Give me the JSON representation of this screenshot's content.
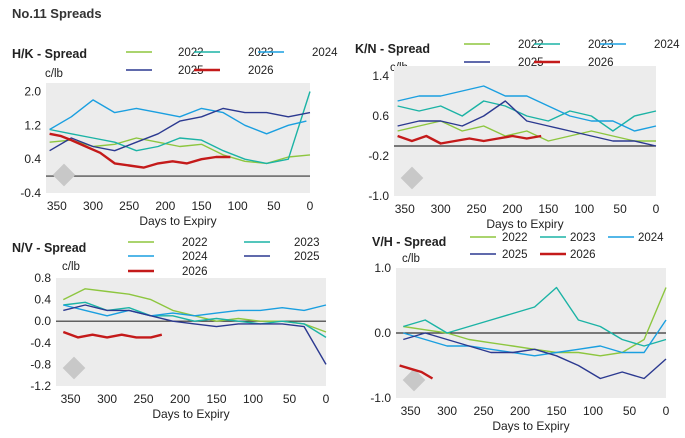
{
  "page": {
    "title": "No.11 Spreads"
  },
  "colors": {
    "2022": "#8dc63f",
    "2023": "#1bb3a5",
    "2024": "#1a9fe0",
    "2025": "#2b3990",
    "2026": "#c41a1a",
    "plot_bg": "#ececec",
    "zero_line": "#333333",
    "text": "#222222"
  },
  "chart_data": [
    {
      "id": "hk",
      "type": "line",
      "title": "H/K - Spread",
      "unit": "c/lb",
      "xlabel": "Days to Expiry",
      "xlim": [
        365,
        0
      ],
      "ylim": [
        -0.4,
        2.2
      ],
      "yticks": [
        "2.0",
        "1.2",
        "0.4",
        "-0.4"
      ],
      "ytick_values": [
        2.0,
        1.2,
        0.4,
        -0.4
      ],
      "xticks": [
        "350",
        "300",
        "250",
        "200",
        "150",
        "100",
        "50",
        "0"
      ],
      "xtick_values": [
        350,
        300,
        250,
        200,
        150,
        100,
        50,
        0
      ],
      "series": [
        {
          "name": "2022",
          "x": [
            360,
            330,
            300,
            270,
            240,
            210,
            180,
            150,
            120,
            90,
            60,
            30,
            0
          ],
          "y": [
            0.8,
            0.85,
            0.7,
            0.75,
            0.9,
            0.8,
            0.7,
            0.75,
            0.5,
            0.35,
            0.3,
            0.45,
            0.5
          ]
        },
        {
          "name": "2023",
          "x": [
            360,
            330,
            300,
            270,
            240,
            210,
            180,
            150,
            120,
            90,
            60,
            30,
            0
          ],
          "y": [
            1.1,
            1.0,
            0.9,
            0.8,
            0.6,
            0.7,
            0.9,
            0.85,
            0.6,
            0.4,
            0.3,
            0.4,
            2.0
          ]
        },
        {
          "name": "2024",
          "x": [
            360,
            330,
            300,
            270,
            240,
            210,
            180,
            150,
            120,
            90,
            60,
            30,
            5
          ],
          "y": [
            1.1,
            1.4,
            1.8,
            1.5,
            1.6,
            1.5,
            1.4,
            1.6,
            1.5,
            1.2,
            1.0,
            1.2,
            1.3
          ]
        },
        {
          "name": "2025",
          "x": [
            360,
            330,
            300,
            270,
            240,
            210,
            180,
            150,
            120,
            90,
            60,
            30,
            0
          ],
          "y": [
            0.6,
            0.9,
            0.7,
            0.6,
            0.8,
            1.0,
            1.3,
            1.4,
            1.6,
            1.5,
            1.5,
            1.4,
            1.5
          ]
        },
        {
          "name": "2026",
          "x": [
            360,
            345,
            330,
            310,
            290,
            270,
            250,
            230,
            210,
            190,
            170,
            150,
            130,
            110
          ],
          "y": [
            1.0,
            0.95,
            0.85,
            0.7,
            0.55,
            0.3,
            0.25,
            0.2,
            0.3,
            0.35,
            0.3,
            0.4,
            0.45,
            0.45
          ]
        }
      ]
    },
    {
      "id": "kn",
      "type": "line",
      "title": "K/N - Spread",
      "unit": "c/lb",
      "xlabel": "Days to Expiry",
      "xlim": [
        365,
        0
      ],
      "ylim": [
        -1.0,
        1.6
      ],
      "yticks": [
        "1.4",
        "0.6",
        "-0.2",
        "-1.0"
      ],
      "ytick_values": [
        1.4,
        0.6,
        -0.2,
        -1.0
      ],
      "xticks": [
        "350",
        "300",
        "250",
        "200",
        "150",
        "100",
        "50",
        "0"
      ],
      "xtick_values": [
        350,
        300,
        250,
        200,
        150,
        100,
        50,
        0
      ],
      "series": [
        {
          "name": "2022",
          "x": [
            360,
            330,
            300,
            270,
            240,
            210,
            180,
            150,
            120,
            90,
            60,
            30,
            0
          ],
          "y": [
            0.3,
            0.4,
            0.5,
            0.3,
            0.4,
            0.2,
            0.3,
            0.1,
            0.2,
            0.3,
            0.2,
            0.1,
            0.1
          ]
        },
        {
          "name": "2023",
          "x": [
            360,
            330,
            300,
            270,
            240,
            210,
            180,
            150,
            120,
            90,
            60,
            30,
            0
          ],
          "y": [
            0.8,
            0.7,
            0.8,
            0.6,
            0.9,
            0.8,
            0.6,
            0.5,
            0.7,
            0.6,
            0.3,
            0.6,
            0.7
          ]
        },
        {
          "name": "2024",
          "x": [
            360,
            330,
            300,
            270,
            240,
            210,
            180,
            150,
            120,
            90,
            60,
            30,
            0
          ],
          "y": [
            0.9,
            1.0,
            1.0,
            1.1,
            1.2,
            1.0,
            1.0,
            0.8,
            0.6,
            0.5,
            0.5,
            0.3,
            0.4
          ]
        },
        {
          "name": "2025",
          "x": [
            360,
            330,
            300,
            270,
            240,
            210,
            180,
            150,
            120,
            90,
            60,
            30,
            0
          ],
          "y": [
            0.4,
            0.5,
            0.5,
            0.4,
            0.6,
            0.9,
            0.5,
            0.4,
            0.3,
            0.2,
            0.1,
            0.1,
            0.0
          ]
        },
        {
          "name": "2026",
          "x": [
            360,
            340,
            320,
            300,
            280,
            260,
            240,
            220,
            200,
            180,
            160
          ],
          "y": [
            0.2,
            0.1,
            0.2,
            0.05,
            0.1,
            0.15,
            0.1,
            0.15,
            0.2,
            0.15,
            0.2
          ]
        }
      ]
    },
    {
      "id": "nv",
      "type": "line",
      "title": "N/V - Spread",
      "unit": "c/lb",
      "xlabel": "Days to Expiry",
      "xlim": [
        370,
        0
      ],
      "ylim": [
        -1.2,
        0.8
      ],
      "yticks": [
        "0.8",
        "0.4",
        "0.0",
        "-0.4",
        "-0.8",
        "-1.2"
      ],
      "ytick_values": [
        0.8,
        0.4,
        0.0,
        -0.4,
        -0.8,
        -1.2
      ],
      "xticks": [
        "350",
        "300",
        "250",
        "200",
        "150",
        "100",
        "50",
        "0"
      ],
      "xtick_values": [
        350,
        300,
        250,
        200,
        150,
        100,
        50,
        0
      ],
      "series": [
        {
          "name": "2022",
          "x": [
            360,
            330,
            300,
            270,
            240,
            210,
            180,
            150,
            120,
            90,
            60,
            30,
            0
          ],
          "y": [
            0.4,
            0.6,
            0.55,
            0.5,
            0.4,
            0.2,
            0.1,
            0.0,
            0.05,
            0.0,
            0.0,
            -0.05,
            -0.2
          ]
        },
        {
          "name": "2023",
          "x": [
            360,
            330,
            300,
            270,
            240,
            210,
            180,
            150,
            120,
            90,
            60,
            30,
            0
          ],
          "y": [
            0.3,
            0.35,
            0.2,
            0.25,
            0.1,
            0.1,
            0.0,
            0.05,
            0.0,
            -0.05,
            0.0,
            -0.05,
            -0.3
          ]
        },
        {
          "name": "2024",
          "x": [
            360,
            330,
            300,
            270,
            240,
            210,
            180,
            150,
            120,
            90,
            60,
            30,
            0
          ],
          "y": [
            0.3,
            0.2,
            0.1,
            0.2,
            0.1,
            0.15,
            0.1,
            0.15,
            0.2,
            0.2,
            0.25,
            0.2,
            0.3
          ]
        },
        {
          "name": "2025",
          "x": [
            360,
            330,
            300,
            270,
            240,
            210,
            180,
            150,
            120,
            90,
            60,
            30,
            0
          ],
          "y": [
            0.2,
            0.3,
            0.2,
            0.2,
            0.1,
            0.0,
            -0.05,
            -0.1,
            -0.05,
            -0.05,
            -0.05,
            -0.1,
            -0.8
          ]
        },
        {
          "name": "2026",
          "x": [
            360,
            340,
            320,
            300,
            280,
            260,
            240,
            225
          ],
          "y": [
            -0.2,
            -0.3,
            -0.25,
            -0.3,
            -0.25,
            -0.3,
            -0.3,
            -0.25
          ]
        }
      ]
    },
    {
      "id": "vh",
      "type": "line",
      "title": "V/H - Spread",
      "unit": "c/lb",
      "xlabel": "Days to Expiry",
      "xlim": [
        370,
        0
      ],
      "ylim": [
        -1.0,
        1.0
      ],
      "yticks": [
        "1.0",
        "0.0",
        "-1.0"
      ],
      "ytick_values": [
        1.0,
        0.0,
        -1.0
      ],
      "xticks": [
        "350",
        "300",
        "250",
        "200",
        "150",
        "100",
        "50",
        "0"
      ],
      "xtick_values": [
        350,
        300,
        250,
        200,
        150,
        100,
        50,
        0
      ],
      "series": [
        {
          "name": "2022",
          "x": [
            360,
            330,
            300,
            270,
            240,
            210,
            180,
            150,
            120,
            90,
            60,
            30,
            0
          ],
          "y": [
            0.1,
            0.05,
            0.0,
            -0.1,
            -0.15,
            -0.2,
            -0.25,
            -0.3,
            -0.3,
            -0.35,
            -0.3,
            -0.1,
            0.7
          ]
        },
        {
          "name": "2023",
          "x": [
            360,
            330,
            300,
            270,
            240,
            210,
            180,
            150,
            120,
            90,
            60,
            30,
            0
          ],
          "y": [
            0.1,
            0.2,
            0.0,
            0.1,
            0.2,
            0.3,
            0.4,
            0.7,
            0.2,
            0.1,
            -0.1,
            -0.2,
            -0.1
          ]
        },
        {
          "name": "2024",
          "x": [
            360,
            330,
            300,
            270,
            240,
            210,
            180,
            150,
            120,
            90,
            60,
            30,
            0
          ],
          "y": [
            0.0,
            -0.1,
            -0.2,
            -0.2,
            -0.25,
            -0.3,
            -0.35,
            -0.3,
            -0.25,
            -0.2,
            -0.3,
            -0.3,
            0.2
          ]
        },
        {
          "name": "2025",
          "x": [
            360,
            330,
            300,
            270,
            240,
            210,
            180,
            150,
            120,
            90,
            60,
            30,
            0
          ],
          "y": [
            -0.1,
            0.0,
            -0.1,
            -0.2,
            -0.3,
            -0.3,
            -0.25,
            -0.35,
            -0.5,
            -0.7,
            -0.6,
            -0.7,
            -0.4
          ]
        },
        {
          "name": "2026",
          "x": [
            365,
            350,
            335,
            320
          ],
          "y": [
            -0.5,
            -0.55,
            -0.6,
            -0.7
          ]
        }
      ]
    }
  ]
}
